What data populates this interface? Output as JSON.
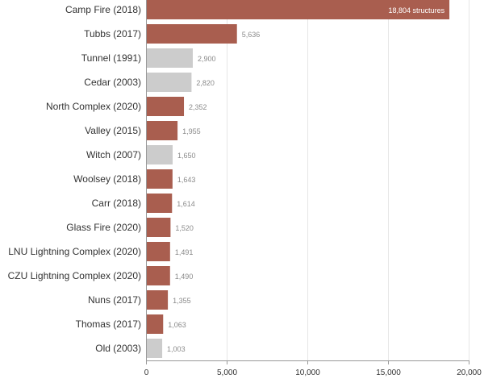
{
  "chart_data": {
    "type": "bar",
    "orientation": "horizontal",
    "title": "",
    "xlabel": "",
    "ylabel": "",
    "xlim": [
      0,
      20000
    ],
    "grid": true,
    "x_ticks": [
      0,
      5000,
      10000,
      15000,
      20000
    ],
    "x_tick_labels": [
      "0",
      "5,000",
      "10,000",
      "15,000",
      "20,000"
    ],
    "colors": {
      "highlight": "#a95e4f",
      "muted": "#cccccc"
    },
    "categories": [
      "Camp Fire (2018)",
      "Tubbs (2017)",
      "Tunnel (1991)",
      "Cedar (2003)",
      "North Complex (2020)",
      "Valley (2015)",
      "Witch (2007)",
      "Woolsey (2018)",
      "Carr (2018)",
      "Glass Fire (2020)",
      "LNU Lightning Complex (2020)",
      "CZU Lightning Complex (2020)",
      "Nuns (2017)",
      "Thomas (2017)",
      "Old (2003)"
    ],
    "values": [
      18804,
      5636,
      2900,
      2820,
      2352,
      1955,
      1650,
      1643,
      1614,
      1520,
      1491,
      1490,
      1355,
      1063,
      1003
    ],
    "value_labels": [
      "18,804 structures",
      "5,636",
      "2,900",
      "2,820",
      "2,352",
      "1,955",
      "1,650",
      "1,643",
      "1,614",
      "1,520",
      "1,491",
      "1,490",
      "1,355",
      "1,063",
      "1,003"
    ],
    "highlighted": [
      true,
      true,
      false,
      false,
      true,
      true,
      false,
      true,
      true,
      true,
      true,
      true,
      true,
      true,
      false
    ]
  }
}
